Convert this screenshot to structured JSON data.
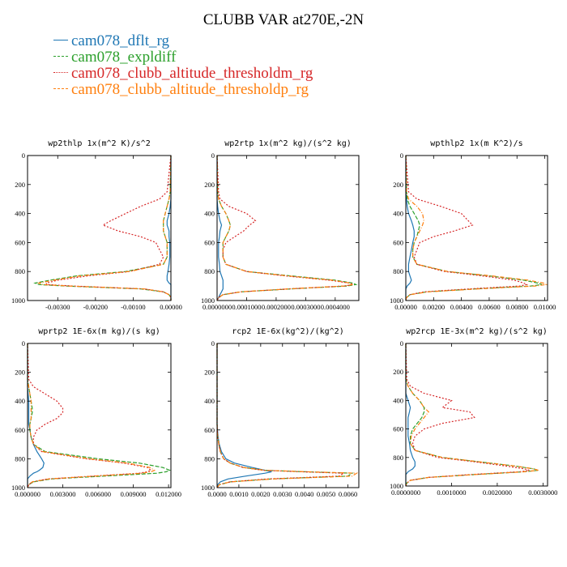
{
  "title": "CLUBB VAR at270E,-2N",
  "legend": [
    {
      "label": "cam078_dflt_rg",
      "color": "#1f77b4",
      "dash": "solid"
    },
    {
      "label": "cam078_expldiff",
      "color": "#2ca02c",
      "dash": "dash"
    },
    {
      "label": "cam078_clubb_altitude_thresholdm_rg",
      "color": "#d62728",
      "dash": "dot"
    },
    {
      "label": "cam078_clubb_altitude_thresholdp_rg",
      "color": "#ff7f0e",
      "dash": "dashdot"
    }
  ],
  "chart_data": [
    {
      "type": "line",
      "title": "wp2thlp  1x(m^2 K)/s^2",
      "xlim": [
        -0.0038,
        0.0
      ],
      "ylim": [
        1000,
        0
      ],
      "xticks": [
        -0.003,
        -0.002,
        -0.001,
        0.0
      ],
      "xtick_labels": [
        "-0.00300",
        "-0.00200",
        "-0.00100",
        "0.00000"
      ],
      "yticks": [
        0,
        200,
        400,
        600,
        800,
        1000
      ],
      "ytick_labels": [
        "0",
        "200",
        "400",
        "600",
        "800",
        "1000"
      ],
      "y": [
        0,
        250,
        300,
        350,
        400,
        450,
        480,
        520,
        560,
        600,
        650,
        700,
        750,
        800,
        830,
        860,
        880,
        890,
        900,
        920,
        940,
        960,
        980,
        1000
      ],
      "series": [
        {
          "name": "cam078_dflt_rg",
          "values": [
            0,
            0,
            0,
            -2e-05,
            -5e-05,
            -0.0001,
            -0.0001,
            -5e-05,
            -5e-05,
            -3e-05,
            -3e-05,
            -3e-05,
            -5e-05,
            -8e-05,
            -0.0001,
            -0.0001,
            -5e-05,
            0,
            0,
            0,
            0,
            0,
            0,
            0
          ]
        },
        {
          "name": "cam078_expldiff",
          "values": [
            0,
            -2e-05,
            -5e-05,
            -0.0001,
            -0.00015,
            -0.0002,
            -0.0002,
            -0.0002,
            -0.00015,
            -0.0001,
            -0.0001,
            -0.0001,
            -0.0002,
            -0.0012,
            -0.0025,
            -0.0032,
            -0.0036,
            -0.0035,
            -0.0028,
            -0.0008,
            -0.0002,
            -5e-05,
            0,
            0
          ]
        },
        {
          "name": "cam078_clubb_altitude_thresholdm_rg",
          "values": [
            0,
            -0.0001,
            -0.0003,
            -0.0008,
            -0.0012,
            -0.0016,
            -0.0018,
            -0.0014,
            -0.0008,
            -0.0004,
            -0.0003,
            -0.0002,
            -0.0003,
            -0.0011,
            -0.0022,
            -0.003,
            -0.0033,
            -0.0033,
            -0.0026,
            -0.0007,
            -0.0002,
            -5e-05,
            0,
            0
          ]
        },
        {
          "name": "cam078_clubb_altitude_thresholdp_rg",
          "values": [
            0,
            -2e-05,
            -5e-05,
            -0.0001,
            -0.00015,
            -0.0002,
            -0.0002,
            -0.0002,
            -0.00015,
            -0.0001,
            -0.0001,
            -0.0001,
            -0.0002,
            -0.0011,
            -0.0024,
            -0.0031,
            -0.0035,
            -0.0034,
            -0.0027,
            -0.0007,
            -0.0002,
            -5e-05,
            0,
            0
          ]
        }
      ]
    },
    {
      "type": "line",
      "title": "wp2rtp  1x(m^2 kg)/(s^2 kg)",
      "xlim": [
        0.0,
        0.00048
      ],
      "ylim": [
        1000,
        0
      ],
      "xticks": [
        0.0,
        0.0001,
        0.0002,
        0.0003,
        0.0004
      ],
      "xtick_labels": [
        "0.0000000",
        "0.0001000",
        "0.0002000",
        "0.0003000",
        "0.0004000"
      ],
      "yticks": [
        0,
        200,
        400,
        600,
        800,
        1000
      ],
      "ytick_labels": [
        "0",
        "200",
        "400",
        "600",
        "800",
        "1000"
      ],
      "y": [
        0,
        250,
        300,
        350,
        400,
        450,
        480,
        520,
        560,
        600,
        650,
        700,
        750,
        800,
        830,
        860,
        880,
        890,
        900,
        920,
        940,
        960,
        980,
        1000
      ],
      "series": [
        {
          "name": "cam078_dflt_rg",
          "values": [
            0,
            0,
            0,
            2e-06,
            5e-06,
            1e-05,
            1.5e-05,
            1e-05,
            8e-06,
            5e-06,
            5e-06,
            5e-06,
            8e-06,
            1e-05,
            1.5e-05,
            2e-05,
            2e-05,
            2e-05,
            2e-05,
            2e-05,
            1.5e-05,
            1e-05,
            5e-06,
            0
          ]
        },
        {
          "name": "cam078_expldiff",
          "values": [
            0,
            2e-06,
            5e-06,
            1.5e-05,
            3e-05,
            4e-05,
            4.5e-05,
            4e-05,
            3e-05,
            2e-05,
            2e-05,
            2e-05,
            3e-05,
            0.0001,
            0.00025,
            0.0004,
            0.00046,
            0.00047,
            0.00044,
            0.00025,
            8e-05,
            2e-05,
            5e-06,
            0
          ]
        },
        {
          "name": "cam078_clubb_altitude_thresholdm_rg",
          "values": [
            0,
            5e-06,
            1e-05,
            4e-05,
            0.0001,
            0.00013,
            0.00011,
            9e-05,
            6e-05,
            3e-05,
            2e-05,
            2e-05,
            3e-05,
            0.0001,
            0.00023,
            0.00038,
            0.00045,
            0.00046,
            0.00043,
            0.00024,
            8e-05,
            2e-05,
            5e-06,
            0
          ]
        },
        {
          "name": "cam078_clubb_altitude_thresholdp_rg",
          "values": [
            0,
            2e-06,
            5e-06,
            1.5e-05,
            3e-05,
            4e-05,
            4.5e-05,
            4e-05,
            3e-05,
            2e-05,
            2e-05,
            2e-05,
            3e-05,
            0.0001,
            0.00024,
            0.00039,
            0.00045,
            0.00046,
            0.00043,
            0.00024,
            8e-05,
            2e-05,
            5e-06,
            0
          ]
        }
      ]
    },
    {
      "type": "line",
      "title": "wpthlp2  1x(m K^2)/s",
      "xlim": [
        0.0,
        0.0102
      ],
      "ylim": [
        1000,
        0
      ],
      "xticks": [
        0.0,
        0.002,
        0.004,
        0.006,
        0.008,
        0.01
      ],
      "xtick_labels": [
        "0.00000",
        "0.00200",
        "0.00400",
        "0.00600",
        "0.00800",
        "0.01000"
      ],
      "yticks": [
        0,
        200,
        400,
        600,
        800,
        1000
      ],
      "ytick_labels": [
        "0",
        "200",
        "400",
        "600",
        "800",
        "1000"
      ],
      "y": [
        0,
        250,
        300,
        350,
        400,
        450,
        480,
        520,
        560,
        600,
        650,
        700,
        750,
        800,
        830,
        860,
        880,
        890,
        900,
        920,
        940,
        960,
        980,
        1000
      ],
      "series": [
        {
          "name": "cam078_dflt_rg",
          "values": [
            0,
            0,
            5e-05,
            0.0001,
            0.0002,
            0.0004,
            0.0005,
            0.0006,
            0.0006,
            0.0005,
            0.0004,
            0.0003,
            0.0002,
            0.0002,
            0.0003,
            0.0004,
            0.0003,
            0.0002,
            0.0001,
            0,
            0,
            0,
            0,
            0
          ]
        },
        {
          "name": "cam078_expldiff",
          "values": [
            0,
            5e-05,
            0.0001,
            0.0003,
            0.0006,
            0.0009,
            0.001,
            0.0009,
            0.0008,
            0.0006,
            0.0005,
            0.0005,
            0.0008,
            0.003,
            0.006,
            0.0085,
            0.0095,
            0.0098,
            0.009,
            0.005,
            0.0015,
            0.0003,
            5e-05,
            0
          ]
        },
        {
          "name": "cam078_clubb_altitude_thresholdm_rg",
          "values": [
            0,
            0.0002,
            0.0008,
            0.0025,
            0.004,
            0.0045,
            0.0048,
            0.0035,
            0.002,
            0.001,
            0.0008,
            0.0006,
            0.0008,
            0.0028,
            0.0055,
            0.0078,
            0.0085,
            0.0087,
            0.0082,
            0.0045,
            0.0013,
            0.0003,
            5e-05,
            0
          ]
        },
        {
          "name": "cam078_clubb_altitude_thresholdp_rg",
          "values": [
            0,
            5e-05,
            0.0002,
            0.0008,
            0.0012,
            0.0013,
            0.0012,
            0.001,
            0.0008,
            0.0006,
            0.0005,
            0.0005,
            0.0008,
            0.003,
            0.0062,
            0.0088,
            0.0099,
            0.0101,
            0.0093,
            0.0052,
            0.0016,
            0.0003,
            5e-05,
            0
          ]
        }
      ]
    },
    {
      "type": "line",
      "title": "wprtp2  1E-6x(m kg)/(s kg)",
      "xlim": [
        0.0,
        0.0122
      ],
      "ylim": [
        1000,
        0
      ],
      "xticks": [
        0.0,
        0.003,
        0.006,
        0.009,
        0.012
      ],
      "xtick_labels": [
        "0.000000",
        "0.003000",
        "0.006000",
        "0.009000",
        "0.012000"
      ],
      "yticks": [
        0,
        200,
        400,
        600,
        800,
        1000
      ],
      "ytick_labels": [
        "0",
        "200",
        "400",
        "600",
        "800",
        "1000"
      ],
      "y": [
        0,
        250,
        300,
        350,
        400,
        450,
        480,
        520,
        560,
        600,
        650,
        700,
        750,
        800,
        830,
        860,
        880,
        890,
        900,
        920,
        940,
        960,
        980,
        1000
      ],
      "series": [
        {
          "name": "cam078_dflt_rg",
          "values": [
            0,
            0,
            0,
            5e-05,
            0.0001,
            0.0001,
            0.0001,
            0.0001,
            0.0001,
            0.0002,
            0.0003,
            0.0005,
            0.0008,
            0.0012,
            0.0014,
            0.0013,
            0.001,
            0.0008,
            0.0005,
            0.0002,
            0,
            0,
            0,
            0
          ]
        },
        {
          "name": "cam078_expldiff",
          "values": [
            0,
            0,
            0.0001,
            0.0002,
            0.0003,
            0.0004,
            0.0004,
            0.0003,
            0.0002,
            0.0002,
            0.0003,
            0.0005,
            0.0015,
            0.006,
            0.0095,
            0.0115,
            0.0121,
            0.0118,
            0.011,
            0.0065,
            0.002,
            0.0005,
            0.0001,
            0
          ]
        },
        {
          "name": "cam078_clubb_altitude_thresholdm_rg",
          "values": [
            0,
            0.0001,
            0.0005,
            0.0015,
            0.0025,
            0.003,
            0.003,
            0.0025,
            0.0015,
            0.0008,
            0.0005,
            0.0005,
            0.0012,
            0.005,
            0.0082,
            0.0102,
            0.0105,
            0.0102,
            0.0095,
            0.0055,
            0.0017,
            0.0004,
            0.0001,
            0
          ]
        },
        {
          "name": "cam078_clubb_altitude_thresholdp_rg",
          "values": [
            0,
            0,
            0.0001,
            0.0002,
            0.0003,
            0.0003,
            0.0003,
            0.0003,
            0.0002,
            0.0002,
            0.0003,
            0.0005,
            0.0013,
            0.0052,
            0.0085,
            0.0104,
            0.0108,
            0.0105,
            0.0098,
            0.0057,
            0.0018,
            0.0004,
            0.0001,
            0
          ]
        }
      ]
    },
    {
      "type": "line",
      "title": "rcp2  1E-6x(kg^2)/(kg^2)",
      "xlim": [
        0.0,
        0.0065
      ],
      "ylim": [
        1000,
        0
      ],
      "xticks": [
        0.0,
        0.001,
        0.002,
        0.003,
        0.004,
        0.005,
        0.006
      ],
      "xtick_labels": [
        "0.0000",
        "0.0010",
        "0.0020",
        "0.0030",
        "0.0040",
        "0.0050",
        "0.0060"
      ],
      "yticks": [
        0,
        200,
        400,
        600,
        800,
        1000
      ],
      "ytick_labels": [
        "0",
        "200",
        "400",
        "600",
        "800",
        "1000"
      ],
      "y": [
        0,
        250,
        300,
        350,
        400,
        450,
        480,
        520,
        560,
        600,
        650,
        700,
        750,
        800,
        830,
        860,
        880,
        890,
        900,
        920,
        940,
        960,
        980,
        1000
      ],
      "series": [
        {
          "name": "cam078_dflt_rg",
          "values": [
            0,
            0,
            0,
            0,
            0,
            0,
            0,
            0,
            0,
            2e-05,
            5e-05,
            0.0001,
            0.0002,
            0.0004,
            0.0008,
            0.0016,
            0.0022,
            0.0025,
            0.0022,
            0.0013,
            0.0005,
            0.00015,
            3e-05,
            0
          ]
        },
        {
          "name": "cam078_expldiff",
          "values": [
            0,
            0,
            0,
            0,
            0,
            0,
            0,
            0,
            0,
            1e-05,
            3e-05,
            8e-05,
            0.00015,
            0.0003,
            0.0006,
            0.0012,
            0.0022,
            0.004,
            0.0062,
            0.006,
            0.0025,
            0.0006,
            0.0001,
            0
          ]
        },
        {
          "name": "cam078_clubb_altitude_thresholdm_rg",
          "values": [
            0,
            0,
            0,
            0,
            0,
            0,
            0,
            0,
            0,
            1e-05,
            3e-05,
            8e-05,
            0.00015,
            0.0003,
            0.0006,
            0.0012,
            0.0021,
            0.0038,
            0.0058,
            0.0056,
            0.0023,
            0.0006,
            0.0001,
            0
          ]
        },
        {
          "name": "cam078_clubb_altitude_thresholdp_rg",
          "values": [
            0,
            0,
            0,
            0,
            0,
            0,
            0,
            0,
            0,
            1e-05,
            3e-05,
            8e-05,
            0.00015,
            0.0003,
            0.0006,
            0.0012,
            0.0022,
            0.0041,
            0.0064,
            0.0062,
            0.0026,
            0.0006,
            0.0001,
            0
          ]
        }
      ]
    },
    {
      "type": "line",
      "title": "wp2rcp  1E-3x(m^2 kg)/(s^2 kg)",
      "xlim": [
        0.0,
        0.0031
      ],
      "ylim": [
        1000,
        0
      ],
      "xticks": [
        0.0,
        0.001,
        0.002,
        0.003
      ],
      "xtick_labels": [
        "0.0000000",
        "0.0010000",
        "0.0020000",
        "0.0030000"
      ],
      "yticks": [
        0,
        200,
        400,
        600,
        800,
        1000
      ],
      "ytick_labels": [
        "0",
        "200",
        "400",
        "600",
        "800",
        "1000"
      ],
      "y": [
        0,
        250,
        300,
        350,
        400,
        450,
        480,
        520,
        560,
        600,
        650,
        700,
        750,
        800,
        830,
        860,
        880,
        890,
        900,
        920,
        940,
        960,
        980,
        1000
      ],
      "series": [
        {
          "name": "cam078_dflt_rg",
          "values": [
            0,
            0,
            0,
            0,
            5e-05,
            0.0001,
            8e-05,
            5e-05,
            5e-05,
            5e-05,
            5e-05,
            8e-05,
            0.0001,
            0.00015,
            0.0002,
            0.0002,
            0.00015,
            0.0001,
            5e-05,
            0,
            0,
            0,
            0,
            0
          ]
        },
        {
          "name": "cam078_expldiff",
          "values": [
            0,
            0,
            5e-05,
            0.00015,
            0.0003,
            0.0004,
            0.0004,
            0.00035,
            0.00025,
            0.00015,
            0.0001,
            0.0001,
            0.0002,
            0.0008,
            0.0016,
            0.0024,
            0.0028,
            0.0029,
            0.0026,
            0.0015,
            0.0005,
            0.0001,
            2e-05,
            0
          ]
        },
        {
          "name": "cam078_clubb_altitude_thresholdm_rg",
          "values": [
            0,
            2e-05,
            0.0001,
            0.0004,
            0.001,
            0.0008,
            0.0014,
            0.0015,
            0.0008,
            0.0004,
            0.0002,
            0.00015,
            0.0002,
            0.0007,
            0.0015,
            0.0022,
            0.0026,
            0.0027,
            0.0025,
            0.0014,
            0.0005,
            0.0001,
            2e-05,
            0
          ]
        },
        {
          "name": "cam078_clubb_altitude_thresholdp_rg",
          "values": [
            0,
            0,
            5e-05,
            0.00015,
            0.0003,
            0.0004,
            0.0005,
            0.0004,
            0.0003,
            0.0002,
            0.00012,
            0.0001,
            0.0002,
            0.0008,
            0.0016,
            0.0024,
            0.0028,
            0.0029,
            0.0026,
            0.0015,
            0.0005,
            0.0001,
            2e-05,
            0
          ]
        }
      ]
    }
  ]
}
